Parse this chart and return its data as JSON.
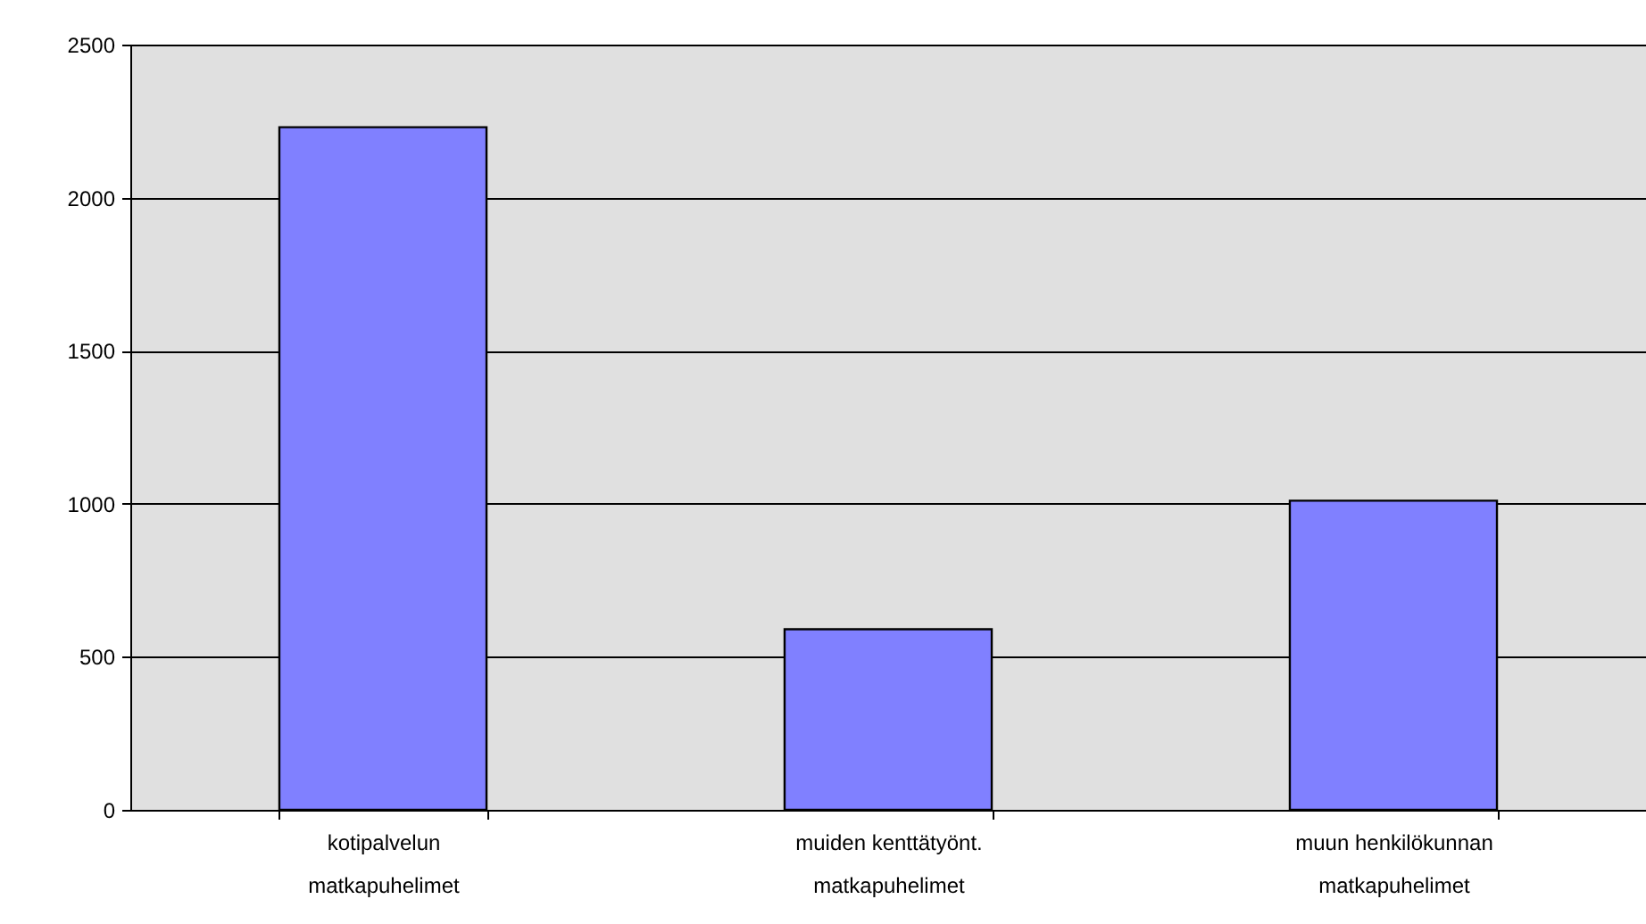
{
  "chart_data": {
    "type": "bar",
    "categories": [
      "kotipalvelun\nmatkapuhelimet",
      "muiden kenttätyönt.\nmatkapuhelimet",
      "muun henkilökunnan\nmatkapuhelimet"
    ],
    "values": [
      2230,
      590,
      1010
    ],
    "color": "#8080ff",
    "ylim": [
      0,
      2500
    ],
    "yticks": [
      0,
      500,
      1000,
      1500,
      2000,
      2500
    ],
    "grid": "y"
  }
}
